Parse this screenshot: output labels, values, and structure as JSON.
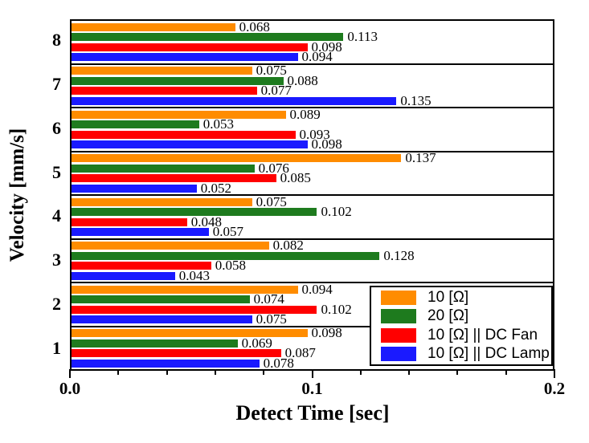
{
  "figure": {
    "background": "#FFFFFF",
    "frame_color": "#000000"
  },
  "chart_data": {
    "type": "bar",
    "orientation": "horizontal",
    "title": "",
    "xlabel": "Detect Time [sec]",
    "ylabel": "Velocity [mm/s]",
    "xlim": [
      0,
      0.2
    ],
    "x_major_ticks": [
      0.0,
      0.1,
      0.2
    ],
    "x_major_tick_labels": [
      "0.0",
      "0.1",
      "0.2"
    ],
    "x_minor_tick_step": 0.02,
    "grid": "horizontal-group-separators",
    "value_label_decimals": 3,
    "legend_position": "inside-bottom-right",
    "categories": [
      "1",
      "2",
      "3",
      "4",
      "5",
      "6",
      "7",
      "8"
    ],
    "category_order_top_to_bottom": [
      "8",
      "7",
      "6",
      "5",
      "4",
      "3",
      "2",
      "1"
    ],
    "series": [
      {
        "name": "10 [Ω]",
        "color": "#FF8C00",
        "values": [
          0.098,
          0.094,
          0.082,
          0.075,
          0.137,
          0.089,
          0.075,
          0.068
        ]
      },
      {
        "name": "20 [Ω]",
        "color": "#1E7B1E",
        "values": [
          0.069,
          0.074,
          0.128,
          0.102,
          0.076,
          0.053,
          0.088,
          0.113
        ]
      },
      {
        "name": "10 [Ω] || DC Fan",
        "color": "#FF0000",
        "values": [
          0.087,
          0.102,
          0.058,
          0.048,
          0.085,
          0.093,
          0.077,
          0.098
        ]
      },
      {
        "name": "10 [Ω] || DC Lamp",
        "color": "#1A1AFF",
        "values": [
          0.078,
          0.075,
          0.043,
          0.057,
          0.052,
          0.098,
          0.135,
          0.094
        ]
      }
    ]
  }
}
